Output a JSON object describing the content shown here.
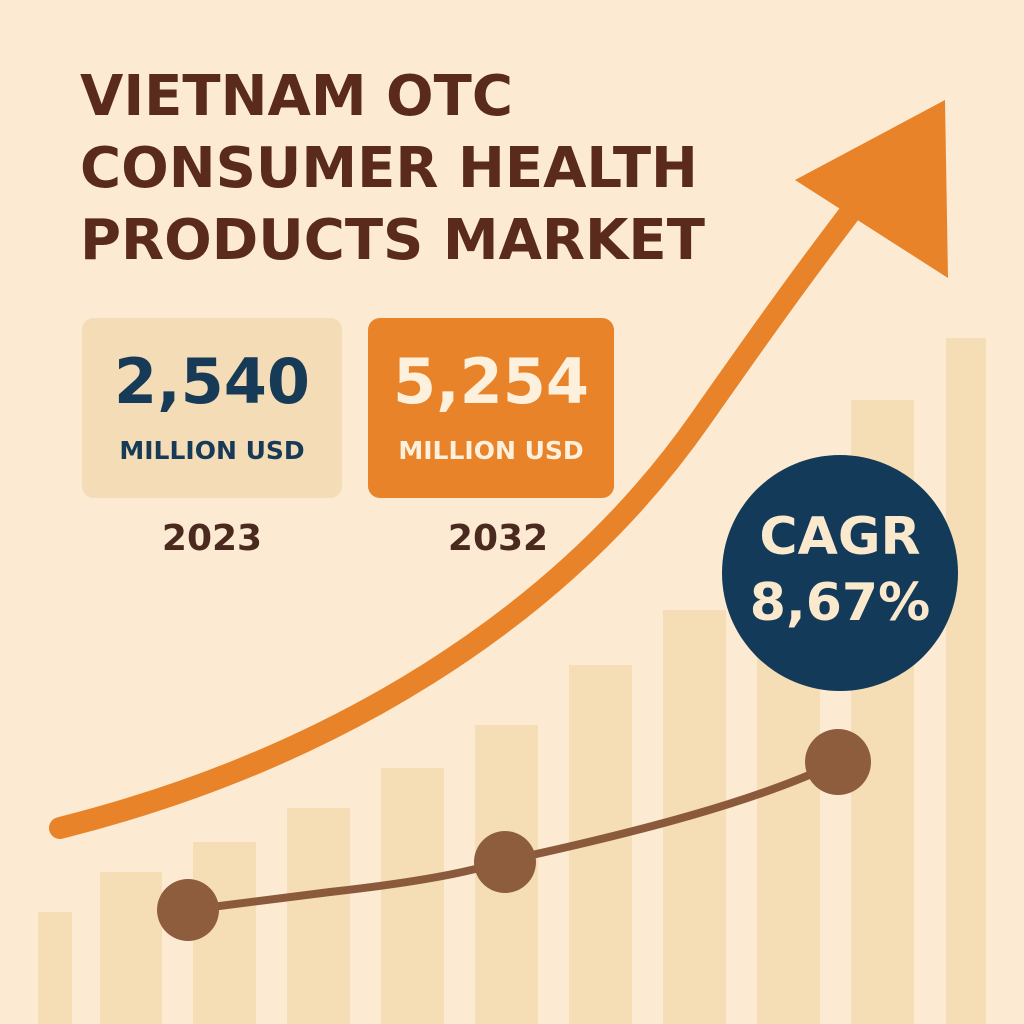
{
  "title": [
    "VIETNAM OTC",
    "CONSUMER HEALTH",
    "PRODUCTS MARKET"
  ],
  "stats": [
    {
      "value": "2,540",
      "unit": "MILLION USD",
      "year": "2023"
    },
    {
      "value": "5,254",
      "unit": "MILLION USD",
      "year": "2032"
    }
  ],
  "cagr": {
    "label": "CAGR",
    "value": "8,67%"
  }
}
